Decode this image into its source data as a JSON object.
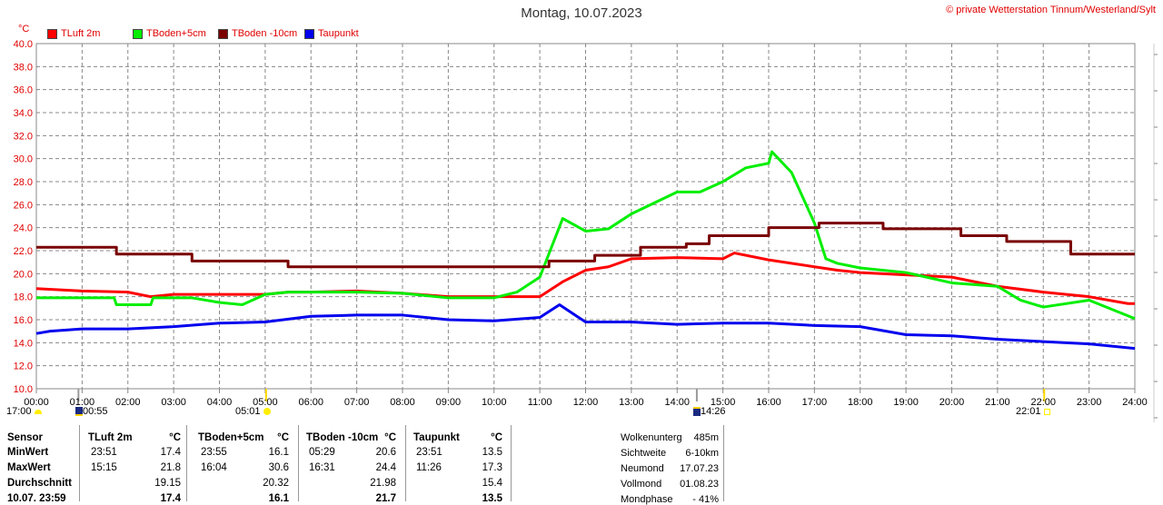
{
  "title": "Montag, 10.07.2023",
  "copyright": "© private Wetterstation Tinnum/Westerland/Sylt",
  "unit_label": "°C",
  "legend": [
    {
      "label": "TLuft 2m",
      "color": "#ff0000"
    },
    {
      "label": "TBoden+5cm",
      "color": "#00ee00"
    },
    {
      "label": "TBoden -10cm",
      "color": "#7a0000"
    },
    {
      "label": "Taupunkt",
      "color": "#0000ee"
    }
  ],
  "events": [
    {
      "time": "17:00",
      "icon": "sunset-half-icon"
    },
    {
      "time": "00:55",
      "icon": "moonrise-icon"
    },
    {
      "time": "05:01",
      "icon": "sunrise-icon"
    },
    {
      "time": "14:26",
      "icon": "moonset-icon"
    },
    {
      "time": "22:01",
      "icon": "sunset-icon"
    }
  ],
  "chart_data": {
    "type": "line",
    "title": "Montag, 10.07.2023",
    "ylabel": "°C",
    "xlabel": "",
    "ylim": [
      10,
      40
    ],
    "xlim": [
      0,
      24
    ],
    "grid": true,
    "legend_placement": "top-left",
    "yticks": [
      "10.0",
      "12.0",
      "14.0",
      "16.0",
      "18.0",
      "20.0",
      "22.0",
      "24.0",
      "26.0",
      "28.0",
      "30.0",
      "32.0",
      "34.0",
      "36.0",
      "38.0",
      "40.0"
    ],
    "xticks": [
      "00:00",
      "01:00",
      "02:00",
      "03:00",
      "04:00",
      "05:00",
      "06:00",
      "07:00",
      "08:00",
      "09:00",
      "10:00",
      "11:00",
      "12:00",
      "13:00",
      "14:00",
      "15:00",
      "16:00",
      "17:00",
      "18:00",
      "19:00",
      "20:00",
      "21:00",
      "22:00",
      "23:00",
      "24:00"
    ],
    "series": [
      {
        "name": "TLuft 2m",
        "color": "#ff0000",
        "x": [
          0,
          1,
          2,
          2.5,
          3,
          4,
          5,
          5.5,
          6,
          7,
          8,
          9,
          10,
          11,
          11.5,
          12,
          12.5,
          13,
          14,
          15,
          15.25,
          16,
          17,
          17.5,
          18,
          19,
          20,
          21,
          22,
          23,
          23.85,
          24
        ],
        "y": [
          18.7,
          18.5,
          18.4,
          18.0,
          18.2,
          18.2,
          18.2,
          18.4,
          18.4,
          18.5,
          18.3,
          18.0,
          18.0,
          18.0,
          19.3,
          20.3,
          20.6,
          21.3,
          21.4,
          21.3,
          21.8,
          21.2,
          20.6,
          20.3,
          20.1,
          19.9,
          19.7,
          18.9,
          18.4,
          18.0,
          17.4,
          17.4
        ]
      },
      {
        "name": "TBoden+5cm",
        "color": "#00ee00",
        "x": [
          0,
          1.7,
          1.75,
          2.5,
          2.55,
          3.4,
          4,
          4.5,
          5,
          5.5,
          6,
          7,
          8,
          9,
          10,
          10.5,
          11,
          11.5,
          12,
          12.5,
          13,
          14,
          14.5,
          15,
          15.5,
          16,
          16.07,
          16.5,
          17,
          17.25,
          17.5,
          18,
          19,
          20,
          21,
          21.5,
          22,
          23,
          23.5,
          24
        ],
        "y": [
          17.9,
          17.9,
          17.3,
          17.3,
          17.9,
          17.9,
          17.5,
          17.3,
          18.2,
          18.4,
          18.4,
          18.4,
          18.3,
          17.9,
          17.9,
          18.4,
          19.7,
          24.8,
          23.7,
          23.9,
          25.2,
          27.1,
          27.1,
          28.0,
          29.2,
          29.6,
          30.6,
          28.8,
          24.4,
          21.3,
          20.9,
          20.5,
          20.1,
          19.2,
          18.9,
          17.7,
          17.1,
          17.7,
          16.9,
          16.1
        ]
      },
      {
        "name": "TBoden -10cm",
        "color": "#7a0000",
        "step": true,
        "x": [
          0,
          1.75,
          3.4,
          5.5,
          11.2,
          12.2,
          13.2,
          14.2,
          14.7,
          15.0,
          16.0,
          17.1,
          18.5,
          20.2,
          21.2,
          22.6,
          24
        ],
        "y": [
          22.3,
          21.7,
          21.1,
          20.6,
          21.1,
          21.6,
          22.3,
          22.6,
          23.3,
          23.3,
          24.0,
          24.4,
          23.9,
          23.3,
          22.8,
          21.7,
          21.7
        ]
      },
      {
        "name": "Taupunkt",
        "color": "#0000ee",
        "x": [
          0,
          0.3,
          1,
          2,
          3,
          4,
          5,
          6,
          7,
          8,
          9,
          10,
          11,
          11.43,
          12,
          13,
          14,
          15,
          16,
          17,
          18,
          19,
          20,
          21,
          22,
          23,
          24
        ],
        "y": [
          14.8,
          15.0,
          15.2,
          15.2,
          15.4,
          15.7,
          15.8,
          16.3,
          16.4,
          16.4,
          16.0,
          15.9,
          16.2,
          17.3,
          15.8,
          15.8,
          15.6,
          15.7,
          15.7,
          15.5,
          15.4,
          14.7,
          14.6,
          14.3,
          14.1,
          13.9,
          13.5
        ]
      }
    ]
  },
  "stats": {
    "headers": [
      "Sensor",
      "TLuft 2m",
      "°C",
      "TBoden+5cm",
      "°C",
      "TBoden -10cm",
      "°C",
      "Taupunkt",
      "°C"
    ],
    "rows": [
      {
        "label": "MinWert",
        "cells": [
          [
            "23:51",
            "17.4"
          ],
          [
            "23:55",
            "16.1"
          ],
          [
            "05:29",
            "20.6"
          ],
          [
            "23:51",
            "13.5"
          ]
        ]
      },
      {
        "label": "MaxWert",
        "cells": [
          [
            "15:15",
            "21.8"
          ],
          [
            "16:04",
            "30.6"
          ],
          [
            "16:31",
            "24.4"
          ],
          [
            "11:26",
            "17.3"
          ]
        ]
      },
      {
        "label": "Durchschnitt",
        "cells": [
          [
            "",
            "19.15"
          ],
          [
            "",
            "20.32"
          ],
          [
            "",
            "21.98"
          ],
          [
            "",
            "15.4"
          ]
        ]
      },
      {
        "label": "10.07. 23:59",
        "cells": [
          [
            "",
            "17.4"
          ],
          [
            "",
            "16.1"
          ],
          [
            "",
            "21.7"
          ],
          [
            "",
            "13.5"
          ]
        ]
      }
    ]
  },
  "info": [
    {
      "label": "Wolkenunterg",
      "value": "485m"
    },
    {
      "label": "Sichtweite",
      "value": "6-10km"
    },
    {
      "label": "Neumond",
      "value": "17.07.23"
    },
    {
      "label": "Vollmond",
      "value": "01.08.23"
    },
    {
      "label": "Mondphase",
      "value": "- 41%"
    }
  ]
}
